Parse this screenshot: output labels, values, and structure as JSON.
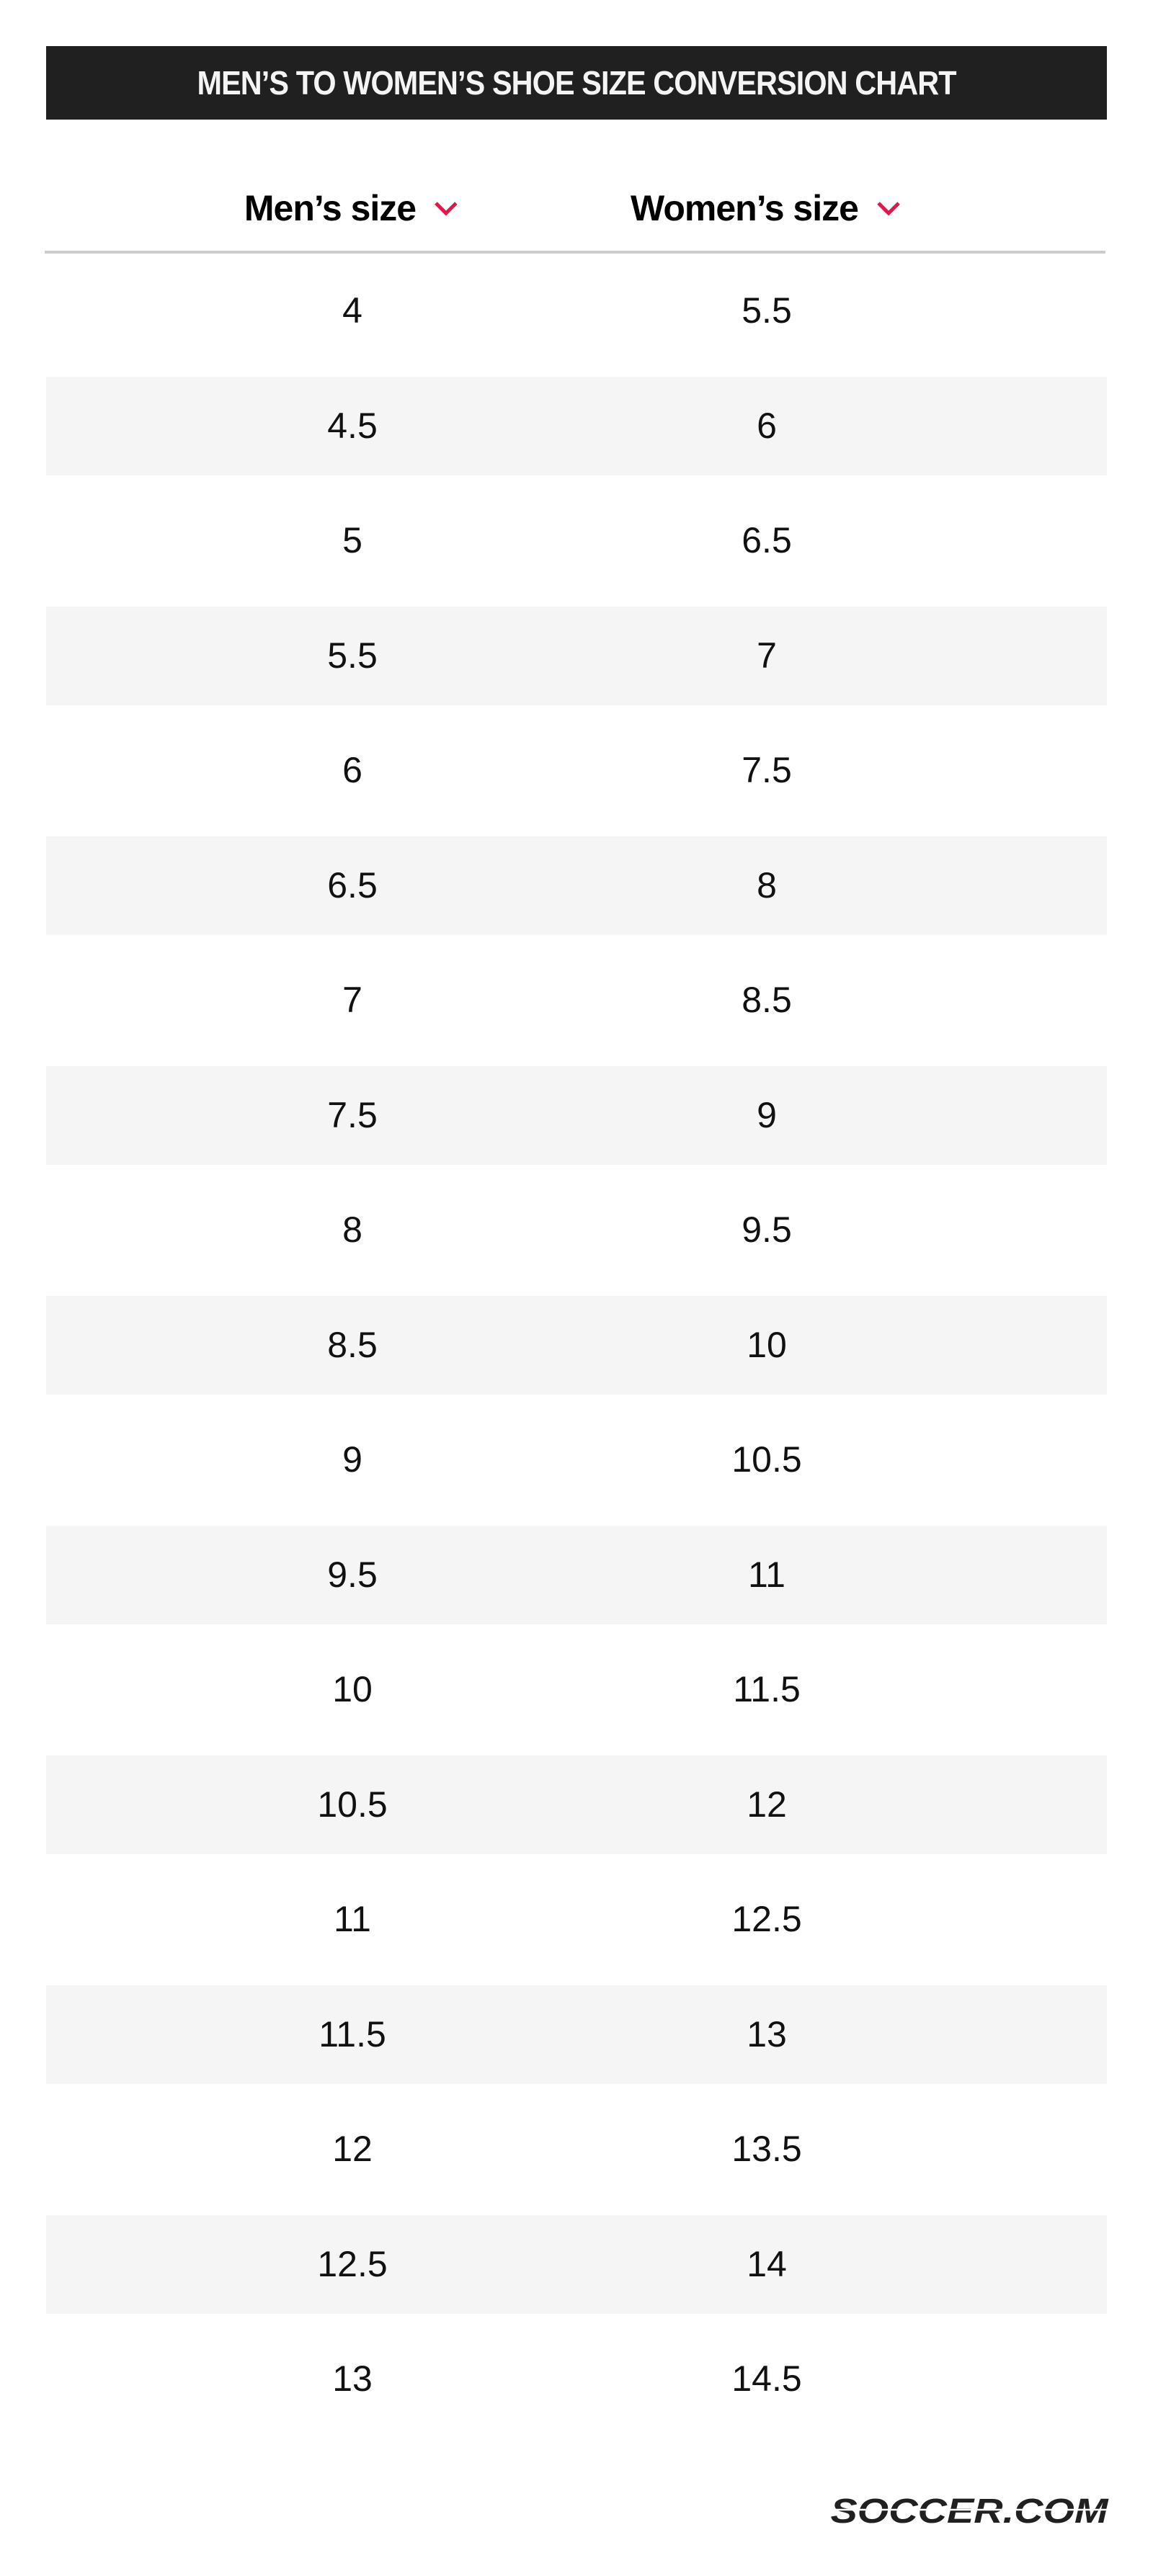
{
  "title": "MEN’S TO WOMEN’S SHOE SIZE CONVERSION CHART",
  "columns": [
    {
      "label": "Men’s size",
      "icon": "chevron-down-icon"
    },
    {
      "label": "Women’s size",
      "icon": "chevron-down-icon"
    }
  ],
  "rows": [
    [
      "4",
      "5.5"
    ],
    [
      "4.5",
      "6"
    ],
    [
      "5",
      "6.5"
    ],
    [
      "5.5",
      "7"
    ],
    [
      "6",
      "7.5"
    ],
    [
      "6.5",
      "8"
    ],
    [
      "7",
      "8.5"
    ],
    [
      "7.5",
      "9"
    ],
    [
      "8",
      "9.5"
    ],
    [
      "8.5",
      "10"
    ],
    [
      "9",
      "10.5"
    ],
    [
      "9.5",
      "11"
    ],
    [
      "10",
      "11.5"
    ],
    [
      "10.5",
      "12"
    ],
    [
      "11",
      "12.5"
    ],
    [
      "11.5",
      "13"
    ],
    [
      "12",
      "13.5"
    ],
    [
      "12.5",
      "14"
    ],
    [
      "13",
      "14.5"
    ]
  ],
  "logo": "SOCCER.COM",
  "colors": {
    "title_bg": "#202020",
    "accent": "#e0174a",
    "stripe": "#f5f5f5",
    "divider": "#cccccc"
  }
}
